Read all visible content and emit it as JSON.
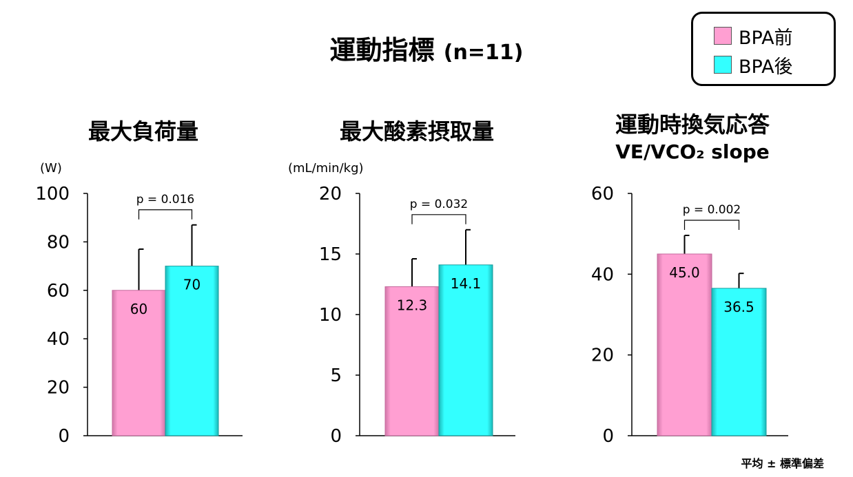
{
  "title": {
    "main": "運動指標",
    "n": "(n=11)"
  },
  "legend": [
    {
      "label": "BPA前",
      "color": "#ff9fd2"
    },
    {
      "label": "BPA後",
      "color": "#33ffff"
    }
  ],
  "footnote": "平均 ± 標準偏差",
  "chart_data": [
    {
      "type": "bar",
      "title": "最大負荷量",
      "subtitle": "",
      "ylabel": "(W)",
      "ylim": [
        0,
        100
      ],
      "yticks": [
        "0",
        "20",
        "40",
        "60",
        "80",
        "100"
      ],
      "ytick_values": [
        0,
        20,
        40,
        60,
        80,
        100
      ],
      "categories": [
        "BPA前",
        "BPA後"
      ],
      "values": [
        60,
        70
      ],
      "value_labels": [
        "60",
        "70"
      ],
      "errors": [
        17,
        17
      ],
      "pvalue": "p = 0.016"
    },
    {
      "type": "bar",
      "title": "最大酸素摂取量",
      "subtitle": "",
      "ylabel": "(mL/min/kg)",
      "ylim": [
        0,
        20
      ],
      "yticks": [
        "0",
        "5",
        "10",
        "15",
        "20"
      ],
      "ytick_values": [
        0,
        5,
        10,
        15,
        20
      ],
      "categories": [
        "BPA前",
        "BPA後"
      ],
      "values": [
        12.3,
        14.1
      ],
      "value_labels": [
        "12.3",
        "14.1"
      ],
      "errors": [
        2.3,
        2.9
      ],
      "pvalue": "p = 0.032"
    },
    {
      "type": "bar",
      "title": "運動時換気応答",
      "subtitle": "VE/VCO₂ slope",
      "ylabel": "",
      "ylim": [
        0,
        60
      ],
      "yticks": [
        "0",
        "20",
        "40",
        "60"
      ],
      "ytick_values": [
        0,
        20,
        40,
        60
      ],
      "categories": [
        "BPA前",
        "BPA後"
      ],
      "values": [
        45.0,
        36.5
      ],
      "value_labels": [
        "45.0",
        "36.5"
      ],
      "errors": [
        4.6,
        3.7
      ],
      "pvalue": "p = 0.002"
    }
  ]
}
